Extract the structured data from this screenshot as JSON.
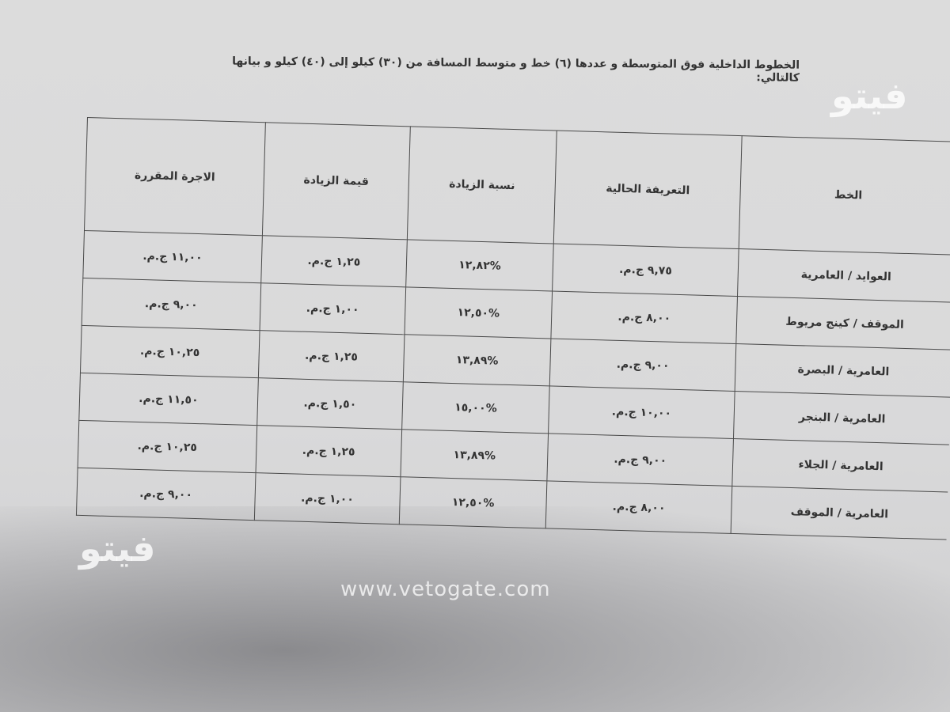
{
  "document": {
    "intro": "الخطوط الداخلية فوق المتوسطة و عددها (٦) خط و متوسط المسافة من (٣٠) كيلو إلى (٤٠) كيلو و بيانها كالتالي:",
    "table": {
      "headers": [
        "الخط",
        "التعريفة الحالية",
        "نسبة الزيادة",
        "قيمة الزيادة",
        "الاجرة المقررة"
      ],
      "rows": [
        [
          "العوايد / العامرية",
          "٩,٧٥ ج.م.",
          "%١٢,٨٢",
          "١,٢٥ ج.م.",
          "١١,٠٠ ج.م."
        ],
        [
          "الموقف / كينج مريوط",
          "٨,٠٠ ج.م.",
          "%١٢,٥٠",
          "١,٠٠ ج.م.",
          "٩,٠٠ ج.م."
        ],
        [
          "العامرية / البصرة",
          "٩,٠٠ ج.م.",
          "%١٣,٨٩",
          "١,٢٥ ج.م.",
          "١٠,٢٥ ج.م."
        ],
        [
          "العامرية / البنجر",
          "١٠,٠٠ ج.م.",
          "%١٥,٠٠",
          "١,٥٠ ج.م.",
          "١١,٥٠ ج.م."
        ],
        [
          "العامرية / الجلاء",
          "٩,٠٠ ج.م.",
          "%١٣,٨٩",
          "١,٢٥ ج.م.",
          "١٠,٢٥ ج.م."
        ],
        [
          "العامرية / الموقف",
          "٨,٠٠ ج.م.",
          "%١٢,٥٠",
          "١,٠٠ ج.م.",
          "٩,٠٠ ج.م."
        ]
      ]
    }
  },
  "watermark": {
    "site": "www.vetogate.com",
    "logo": "فيتو"
  }
}
